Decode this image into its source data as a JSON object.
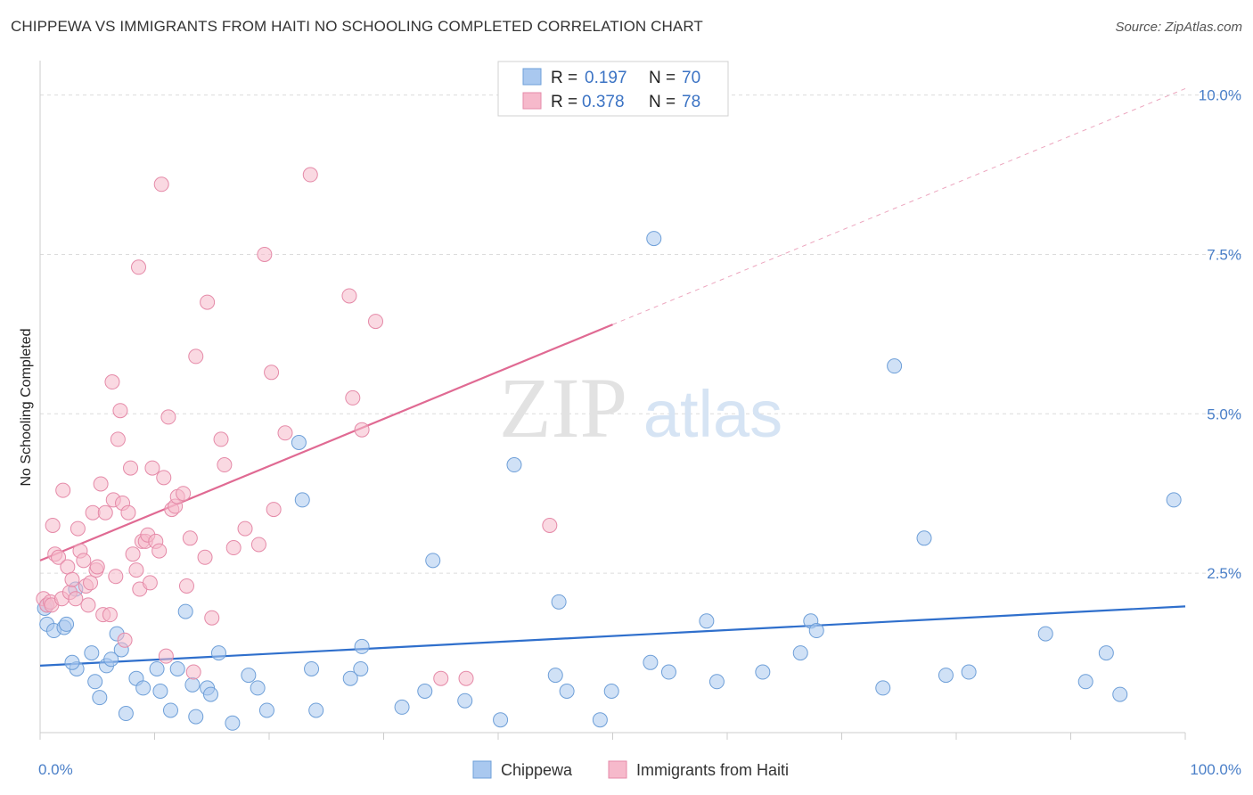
{
  "header": {
    "title": "CHIPPEWA VS IMMIGRANTS FROM HAITI NO SCHOOLING COMPLETED CORRELATION CHART",
    "source": "Source: ZipAtlas.com"
  },
  "watermark": {
    "zip": "ZIP",
    "atlas": "atlas"
  },
  "colors": {
    "blue_fill": "#a9c8ef",
    "blue_stroke": "#6e9fd8",
    "blue_line": "#2f6fcc",
    "pink_fill": "#f6b9cb",
    "pink_stroke": "#e58aa8",
    "pink_line": "#e06a93",
    "tick_text": "#4a7fc8",
    "grid": "#dcdcdc"
  },
  "chart_data": {
    "type": "scatter",
    "title": "CHIPPEWA VS IMMIGRANTS FROM HAITI NO SCHOOLING COMPLETED CORRELATION CHART",
    "xlabel": "",
    "ylabel": "No Schooling Completed",
    "xlim": [
      0,
      100
    ],
    "ylim": [
      0,
      10.4
    ],
    "x_tick_labels": [
      "0.0%",
      "100.0%"
    ],
    "y_ticks": [
      2.5,
      5.0,
      7.5,
      10.0
    ],
    "y_tick_labels": [
      "2.5%",
      "5.0%",
      "7.5%",
      "10.0%"
    ],
    "grid": true,
    "legend": {
      "placement": "top-center",
      "entries": [
        {
          "r_label": "R =",
          "r_value": "0.197",
          "n_label": "N =",
          "n_value": "70"
        },
        {
          "r_label": "R =",
          "r_value": "0.378",
          "n_label": "N =",
          "n_value": "78"
        }
      ]
    },
    "bottom_legend": [
      "Chippewa",
      "Immigrants from Haiti"
    ],
    "series": [
      {
        "name": "Chippewa",
        "color": "#a9c8ef",
        "trend": {
          "x0": 0,
          "y0": 1.05,
          "x1": 100,
          "y1": 1.98,
          "dashed_to": 100
        },
        "points": [
          [
            0.4,
            1.95
          ],
          [
            0.6,
            2.0
          ],
          [
            0.6,
            1.7
          ],
          [
            1.2,
            1.6
          ],
          [
            2.1,
            1.65
          ],
          [
            2.3,
            1.7
          ],
          [
            3.1,
            2.25
          ],
          [
            3.2,
            1.0
          ],
          [
            2.8,
            1.1
          ],
          [
            4.5,
            1.25
          ],
          [
            4.8,
            0.8
          ],
          [
            5.2,
            0.55
          ],
          [
            5.8,
            1.05
          ],
          [
            6.2,
            1.15
          ],
          [
            6.7,
            1.55
          ],
          [
            7.1,
            1.3
          ],
          [
            7.5,
            0.3
          ],
          [
            8.4,
            0.85
          ],
          [
            9.0,
            0.7
          ],
          [
            10.5,
            0.65
          ],
          [
            10.2,
            1.0
          ],
          [
            11.4,
            0.35
          ],
          [
            12.0,
            1.0
          ],
          [
            12.7,
            1.9
          ],
          [
            13.3,
            0.75
          ],
          [
            13.6,
            0.25
          ],
          [
            14.6,
            0.7
          ],
          [
            14.9,
            0.6
          ],
          [
            15.6,
            1.25
          ],
          [
            16.8,
            0.15
          ],
          [
            18.2,
            0.9
          ],
          [
            19.0,
            0.7
          ],
          [
            19.8,
            0.35
          ],
          [
            22.6,
            4.55
          ],
          [
            22.9,
            3.65
          ],
          [
            23.7,
            1.0
          ],
          [
            24.1,
            0.35
          ],
          [
            27.1,
            0.85
          ],
          [
            28.0,
            1.0
          ],
          [
            28.1,
            1.35
          ],
          [
            31.6,
            0.4
          ],
          [
            33.6,
            0.65
          ],
          [
            34.3,
            2.7
          ],
          [
            37.1,
            0.5
          ],
          [
            40.2,
            0.2
          ],
          [
            41.4,
            4.2
          ],
          [
            45.0,
            0.9
          ],
          [
            45.3,
            2.05
          ],
          [
            46.0,
            0.65
          ],
          [
            48.9,
            0.2
          ],
          [
            49.9,
            0.65
          ],
          [
            53.3,
            1.1
          ],
          [
            53.6,
            7.75
          ],
          [
            54.9,
            0.95
          ],
          [
            58.2,
            1.75
          ],
          [
            59.1,
            0.8
          ],
          [
            63.1,
            0.95
          ],
          [
            66.4,
            1.25
          ],
          [
            67.3,
            1.75
          ],
          [
            67.8,
            1.6
          ],
          [
            73.6,
            0.7
          ],
          [
            74.6,
            5.75
          ],
          [
            77.2,
            3.05
          ],
          [
            79.1,
            0.9
          ],
          [
            81.1,
            0.95
          ],
          [
            87.8,
            1.55
          ],
          [
            91.3,
            0.8
          ],
          [
            93.1,
            1.25
          ],
          [
            94.3,
            0.6
          ],
          [
            99.0,
            3.65
          ]
        ]
      },
      {
        "name": "Immigrants from Haiti",
        "color": "#f6b9cb",
        "trend": {
          "x0": 0,
          "y0": 2.7,
          "x1": 50,
          "y1": 6.4,
          "dashed_to": 100
        },
        "points": [
          [
            0.3,
            2.1
          ],
          [
            0.6,
            2.0
          ],
          [
            0.9,
            2.05
          ],
          [
            1.0,
            2.0
          ],
          [
            1.1,
            3.25
          ],
          [
            1.3,
            2.8
          ],
          [
            1.6,
            2.75
          ],
          [
            1.9,
            2.1
          ],
          [
            2.0,
            3.8
          ],
          [
            2.4,
            2.6
          ],
          [
            2.6,
            2.2
          ],
          [
            2.8,
            2.4
          ],
          [
            3.1,
            2.1
          ],
          [
            3.3,
            3.2
          ],
          [
            3.5,
            2.85
          ],
          [
            3.8,
            2.7
          ],
          [
            4.0,
            2.3
          ],
          [
            4.2,
            2.0
          ],
          [
            4.4,
            2.35
          ],
          [
            4.6,
            3.45
          ],
          [
            4.9,
            2.55
          ],
          [
            5.0,
            2.6
          ],
          [
            5.3,
            3.9
          ],
          [
            5.5,
            1.85
          ],
          [
            5.7,
            3.45
          ],
          [
            6.1,
            1.85
          ],
          [
            6.3,
            5.5
          ],
          [
            6.4,
            3.65
          ],
          [
            6.6,
            2.45
          ],
          [
            6.8,
            4.6
          ],
          [
            7.0,
            5.05
          ],
          [
            7.2,
            3.6
          ],
          [
            7.4,
            1.45
          ],
          [
            7.7,
            3.45
          ],
          [
            7.9,
            4.15
          ],
          [
            8.1,
            2.8
          ],
          [
            8.4,
            2.55
          ],
          [
            8.6,
            7.3
          ],
          [
            8.7,
            2.25
          ],
          [
            8.9,
            3.0
          ],
          [
            9.2,
            3.0
          ],
          [
            9.4,
            3.1
          ],
          [
            9.6,
            2.35
          ],
          [
            9.8,
            4.15
          ],
          [
            10.1,
            3.0
          ],
          [
            10.4,
            2.85
          ],
          [
            10.6,
            8.6
          ],
          [
            10.8,
            4.0
          ],
          [
            11.0,
            1.2
          ],
          [
            11.2,
            4.95
          ],
          [
            11.5,
            3.5
          ],
          [
            11.8,
            3.55
          ],
          [
            12.0,
            3.7
          ],
          [
            12.5,
            3.75
          ],
          [
            12.8,
            2.3
          ],
          [
            13.1,
            3.05
          ],
          [
            13.4,
            0.95
          ],
          [
            13.6,
            5.9
          ],
          [
            14.4,
            2.75
          ],
          [
            14.6,
            6.75
          ],
          [
            15.0,
            1.8
          ],
          [
            15.8,
            4.6
          ],
          [
            16.1,
            4.2
          ],
          [
            16.9,
            2.9
          ],
          [
            17.9,
            3.2
          ],
          [
            19.1,
            2.95
          ],
          [
            19.6,
            7.5
          ],
          [
            20.2,
            5.65
          ],
          [
            20.4,
            3.5
          ],
          [
            21.4,
            4.7
          ],
          [
            23.6,
            8.75
          ],
          [
            27.0,
            6.85
          ],
          [
            27.3,
            5.25
          ],
          [
            28.1,
            4.75
          ],
          [
            29.3,
            6.45
          ],
          [
            37.2,
            0.85
          ],
          [
            44.5,
            3.25
          ],
          [
            35.0,
            0.85
          ]
        ]
      }
    ]
  }
}
